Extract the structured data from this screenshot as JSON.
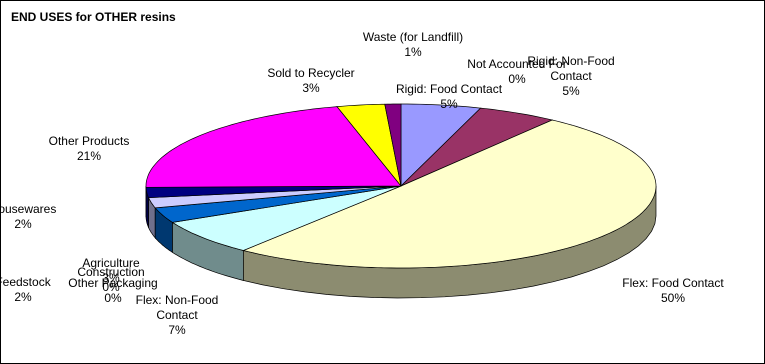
{
  "chart_data": {
    "type": "pie",
    "title": "END USES for OTHER resins",
    "three_d": true,
    "start_angle_deg": -90,
    "direction": "clockwise",
    "slices": [
      {
        "name": "Rigid: Food Contact",
        "value": 5,
        "label": "5%",
        "color": "#9999ff"
      },
      {
        "name": "Rigid: Non-Food Contact",
        "value": 5,
        "label": "5%",
        "color": "#993366"
      },
      {
        "name": "Flex: Food Contact",
        "value": 50,
        "label": "50%",
        "color": "#ffffcc"
      },
      {
        "name": "Flex: Non-Food Contact",
        "value": 7,
        "label": "7%",
        "color": "#ccffff"
      },
      {
        "name": "Other Packaging",
        "value": 0,
        "label": "0%",
        "color": "#ff8080"
      },
      {
        "name": "Construction",
        "value": 0,
        "label": "0%",
        "color": "#ffffff"
      },
      {
        "name": "Agriculture",
        "value": 3,
        "label": "3%",
        "color": "#0066cc"
      },
      {
        "name": "Feedstock",
        "value": 2,
        "label": "2%",
        "color": "#ccccff"
      },
      {
        "name": "Housewares",
        "value": 2,
        "label": "2%",
        "color": "#000080"
      },
      {
        "name": "Other Products",
        "value": 21,
        "label": "21%",
        "color": "#ff00ff"
      },
      {
        "name": "Sold to Recycler",
        "value": 3,
        "label": "3%",
        "color": "#ffff00"
      },
      {
        "name": "Not Accounted For",
        "value": 0,
        "label": "0%",
        "color": "#00ffff"
      },
      {
        "name": "Waste (for Landfill)",
        "value": 1,
        "label": "1%",
        "color": "#800080"
      }
    ],
    "labels": [
      {
        "lines": [
          "Rigid: Food Contact",
          "5%"
        ]
      },
      {
        "lines": [
          "Rigid: Non-Food",
          "Contact",
          "5%"
        ]
      },
      {
        "lines": [
          "Flex:  Food Contact",
          "50%"
        ]
      },
      {
        "lines": [
          "Flex: Non-Food",
          "Contact",
          "7%"
        ]
      },
      {
        "lines": [
          "Other Packaging",
          "0%"
        ]
      },
      {
        "lines": [
          "Construction",
          "0%"
        ]
      },
      {
        "lines": [
          "Agriculture",
          "3%"
        ]
      },
      {
        "lines": [
          "Feedstock",
          "2%"
        ]
      },
      {
        "lines": [
          "Housewares",
          "2%"
        ]
      },
      {
        "lines": [
          "Other Products",
          "21%"
        ]
      },
      {
        "lines": [
          "Sold to Recycler",
          "3%"
        ]
      },
      {
        "lines": [
          "Not Accounted For",
          "0%"
        ]
      },
      {
        "lines": [
          "Waste (for Landfill)",
          "1%"
        ]
      }
    ]
  }
}
